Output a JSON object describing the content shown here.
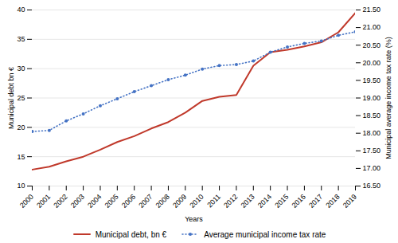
{
  "chart_data": {
    "type": "line",
    "x": [
      2000,
      2001,
      2002,
      2003,
      2004,
      2005,
      2006,
      2007,
      2008,
      2009,
      2010,
      2011,
      2012,
      2013,
      2014,
      2015,
      2016,
      2017,
      2018,
      2019
    ],
    "xlim": [
      2000,
      2019
    ],
    "xticks": [
      2000,
      2001,
      2002,
      2003,
      2004,
      2005,
      2006,
      2007,
      2008,
      2009,
      2010,
      2011,
      2012,
      2013,
      2014,
      2015,
      2016,
      2017,
      2018,
      2019
    ],
    "xlabel": "Years",
    "ylabel": "Municipal debt bn €",
    "ylim": [
      10,
      40
    ],
    "yticks": [
      10,
      15,
      20,
      25,
      30,
      35,
      40
    ],
    "y2label": "Municipal average income tax rate (%)",
    "y2lim": [
      16.5,
      21.5
    ],
    "y2ticks": [
      {
        "value": 16.5,
        "label": "16.50"
      },
      {
        "value": 17.0,
        "label": "17.00"
      },
      {
        "value": 17.5,
        "label": "17.50"
      },
      {
        "value": 18.0,
        "label": "18.00"
      },
      {
        "value": 18.5,
        "label": "18.50"
      },
      {
        "value": 19.0,
        "label": "19.00"
      },
      {
        "value": 19.5,
        "label": "19.50"
      },
      {
        "value": 20.0,
        "label": "20.00"
      },
      {
        "value": 20.5,
        "label": "20.50"
      },
      {
        "value": 21.0,
        "label": "21.00"
      },
      {
        "value": 21.5,
        "label": "21.50"
      }
    ],
    "grid": true,
    "legend": "bottom",
    "series": [
      {
        "name": "Municipal debt, bn €",
        "color": "#c0392b",
        "line_style": "solid",
        "values": [
          12.8,
          13.3,
          14.2,
          15.0,
          16.2,
          17.5,
          18.5,
          19.8,
          20.9,
          22.5,
          24.5,
          25.2,
          25.5,
          30.5,
          32.8,
          33.2,
          33.8,
          34.5,
          36.2,
          39.5
        ]
      },
      {
        "name": "Average municipal income tax rate",
        "color": "#4472c4",
        "line_style": "dotted",
        "marker": "dot",
        "axis": "y2",
        "values": [
          18.05,
          18.08,
          18.35,
          18.55,
          18.78,
          18.98,
          19.18,
          19.35,
          19.52,
          19.65,
          19.82,
          19.92,
          19.95,
          20.05,
          20.3,
          20.45,
          20.55,
          20.62,
          20.78,
          20.88
        ]
      }
    ]
  }
}
